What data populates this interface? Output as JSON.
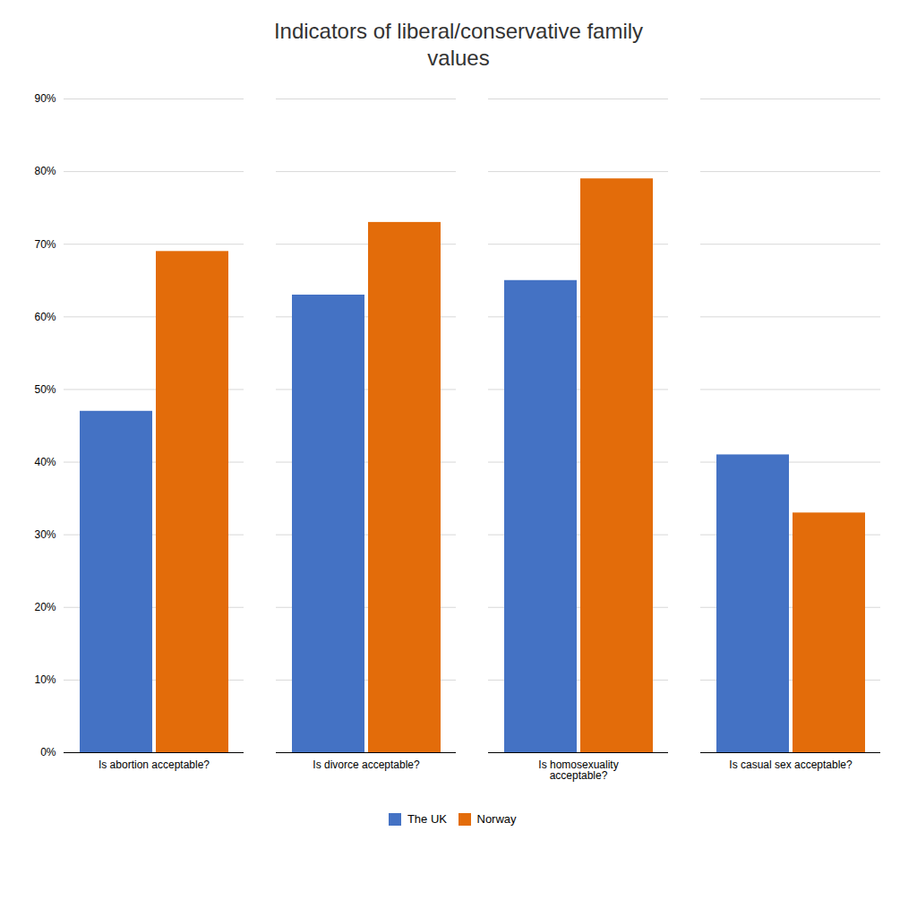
{
  "chart_data": {
    "type": "bar",
    "title": "Indicators of liberal/conservative family\nvalues",
    "categories": [
      "Is abortion acceptable?",
      "Is divorce acceptable?",
      "Is homosexuality\nacceptable?",
      "Is casual sex acceptable?"
    ],
    "series": [
      {
        "name": "The UK",
        "color": "#4472C4",
        "values": [
          47,
          63,
          65,
          41
        ]
      },
      {
        "name": "Norway",
        "color": "#E36C0A",
        "values": [
          69,
          73,
          79,
          33
        ]
      }
    ],
    "ylim": [
      0,
      90
    ],
    "yticks": [
      {
        "value": 0,
        "label": "0%"
      },
      {
        "value": 10,
        "label": "10%"
      },
      {
        "value": 20,
        "label": "20%"
      },
      {
        "value": 30,
        "label": "30%"
      },
      {
        "value": 40,
        "label": "40%"
      },
      {
        "value": 50,
        "label": "50%"
      },
      {
        "value": 60,
        "label": "60%"
      },
      {
        "value": 70,
        "label": "70%"
      },
      {
        "value": 80,
        "label": "80%"
      },
      {
        "value": 90,
        "label": "90%"
      }
    ],
    "grid": true,
    "legend": "bottom"
  }
}
